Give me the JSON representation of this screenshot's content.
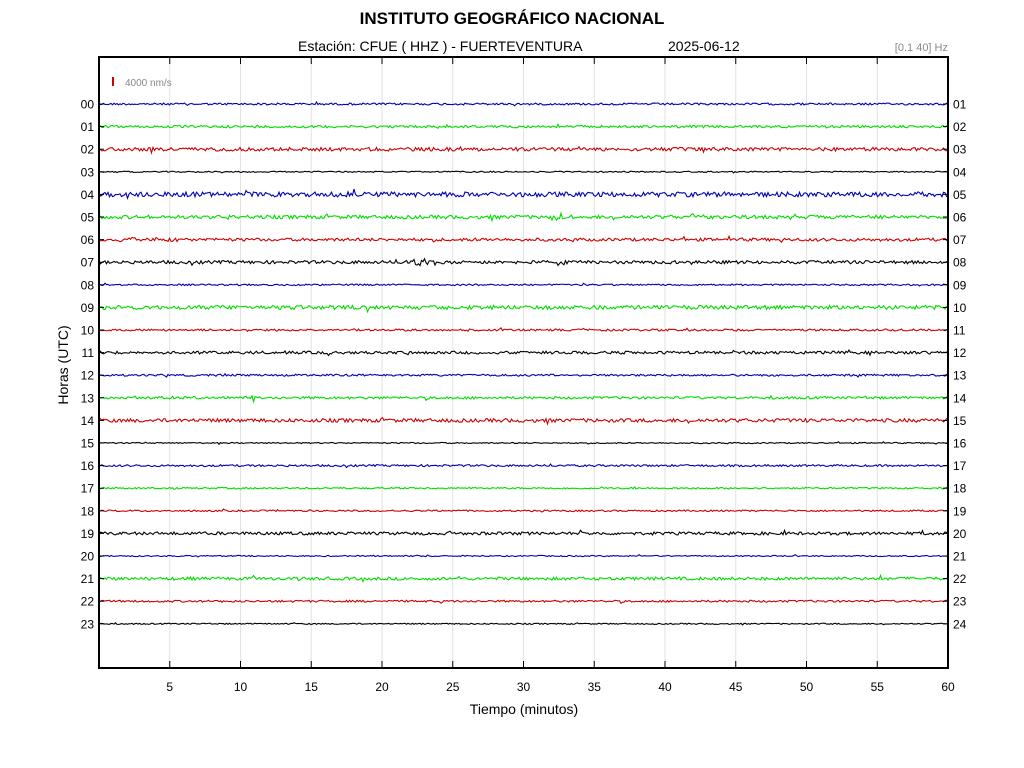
{
  "chart_data": {
    "type": "line",
    "title": "INSTITUTO GEOGRÁFICO NACIONAL",
    "subtitle": "Estación:  CFUE ( HHZ ) - FUERTEVENTURA",
    "date": "2025-06-12",
    "filter_band": "[0.1 40] Hz",
    "scale_label": "4000 nm/s",
    "xlabel": "Tiempo (minutos)",
    "ylabel": "Horas (UTC)",
    "xlim": [
      0,
      60
    ],
    "x_ticks": [
      5,
      10,
      15,
      20,
      25,
      30,
      35,
      40,
      45,
      50,
      55,
      60
    ],
    "left_hour_labels": [
      "00",
      "01",
      "02",
      "03",
      "04",
      "05",
      "06",
      "07",
      "08",
      "09",
      "10",
      "11",
      "12",
      "13",
      "14",
      "15",
      "16",
      "17",
      "18",
      "19",
      "20",
      "21",
      "22",
      "23"
    ],
    "right_hour_labels": [
      "01",
      "02",
      "03",
      "04",
      "05",
      "06",
      "07",
      "08",
      "09",
      "10",
      "11",
      "12",
      "13",
      "14",
      "15",
      "16",
      "17",
      "18",
      "19",
      "20",
      "21",
      "22",
      "23",
      "24"
    ],
    "grid": "vertical",
    "trace_colors": [
      "#0000b4",
      "#00dd00",
      "#cc0000",
      "#000000"
    ],
    "scale_bar_color": "#cc0000",
    "trace_noise": [
      1.0,
      1.2,
      1.8,
      0.6,
      2.4,
      1.8,
      1.5,
      1.6,
      0.8,
      2.0,
      1.0,
      1.4,
      1.0,
      1.2,
      1.8,
      0.6,
      1.0,
      0.8,
      0.8,
      1.5,
      0.6,
      1.5,
      1.0,
      0.6
    ],
    "events": [
      {
        "hour": 4,
        "minute": 17.5,
        "amplitude": 1.5
      },
      {
        "hour": 4,
        "minute": 57,
        "amplitude": 1.8
      },
      {
        "hour": 5,
        "minute": 32.5,
        "amplitude": 2.5
      },
      {
        "hour": 5,
        "minute": 42,
        "amplitude": 2.0
      },
      {
        "hour": 5,
        "minute": 49,
        "amplitude": 1.5
      },
      {
        "hour": 6,
        "minute": 2,
        "amplitude": 2.0
      },
      {
        "hour": 6,
        "minute": 4.8,
        "amplitude": 3.0
      },
      {
        "hour": 7,
        "minute": 23.0,
        "amplitude": 5.0
      },
      {
        "hour": 13,
        "minute": 10.5,
        "amplitude": 2.0
      }
    ]
  }
}
